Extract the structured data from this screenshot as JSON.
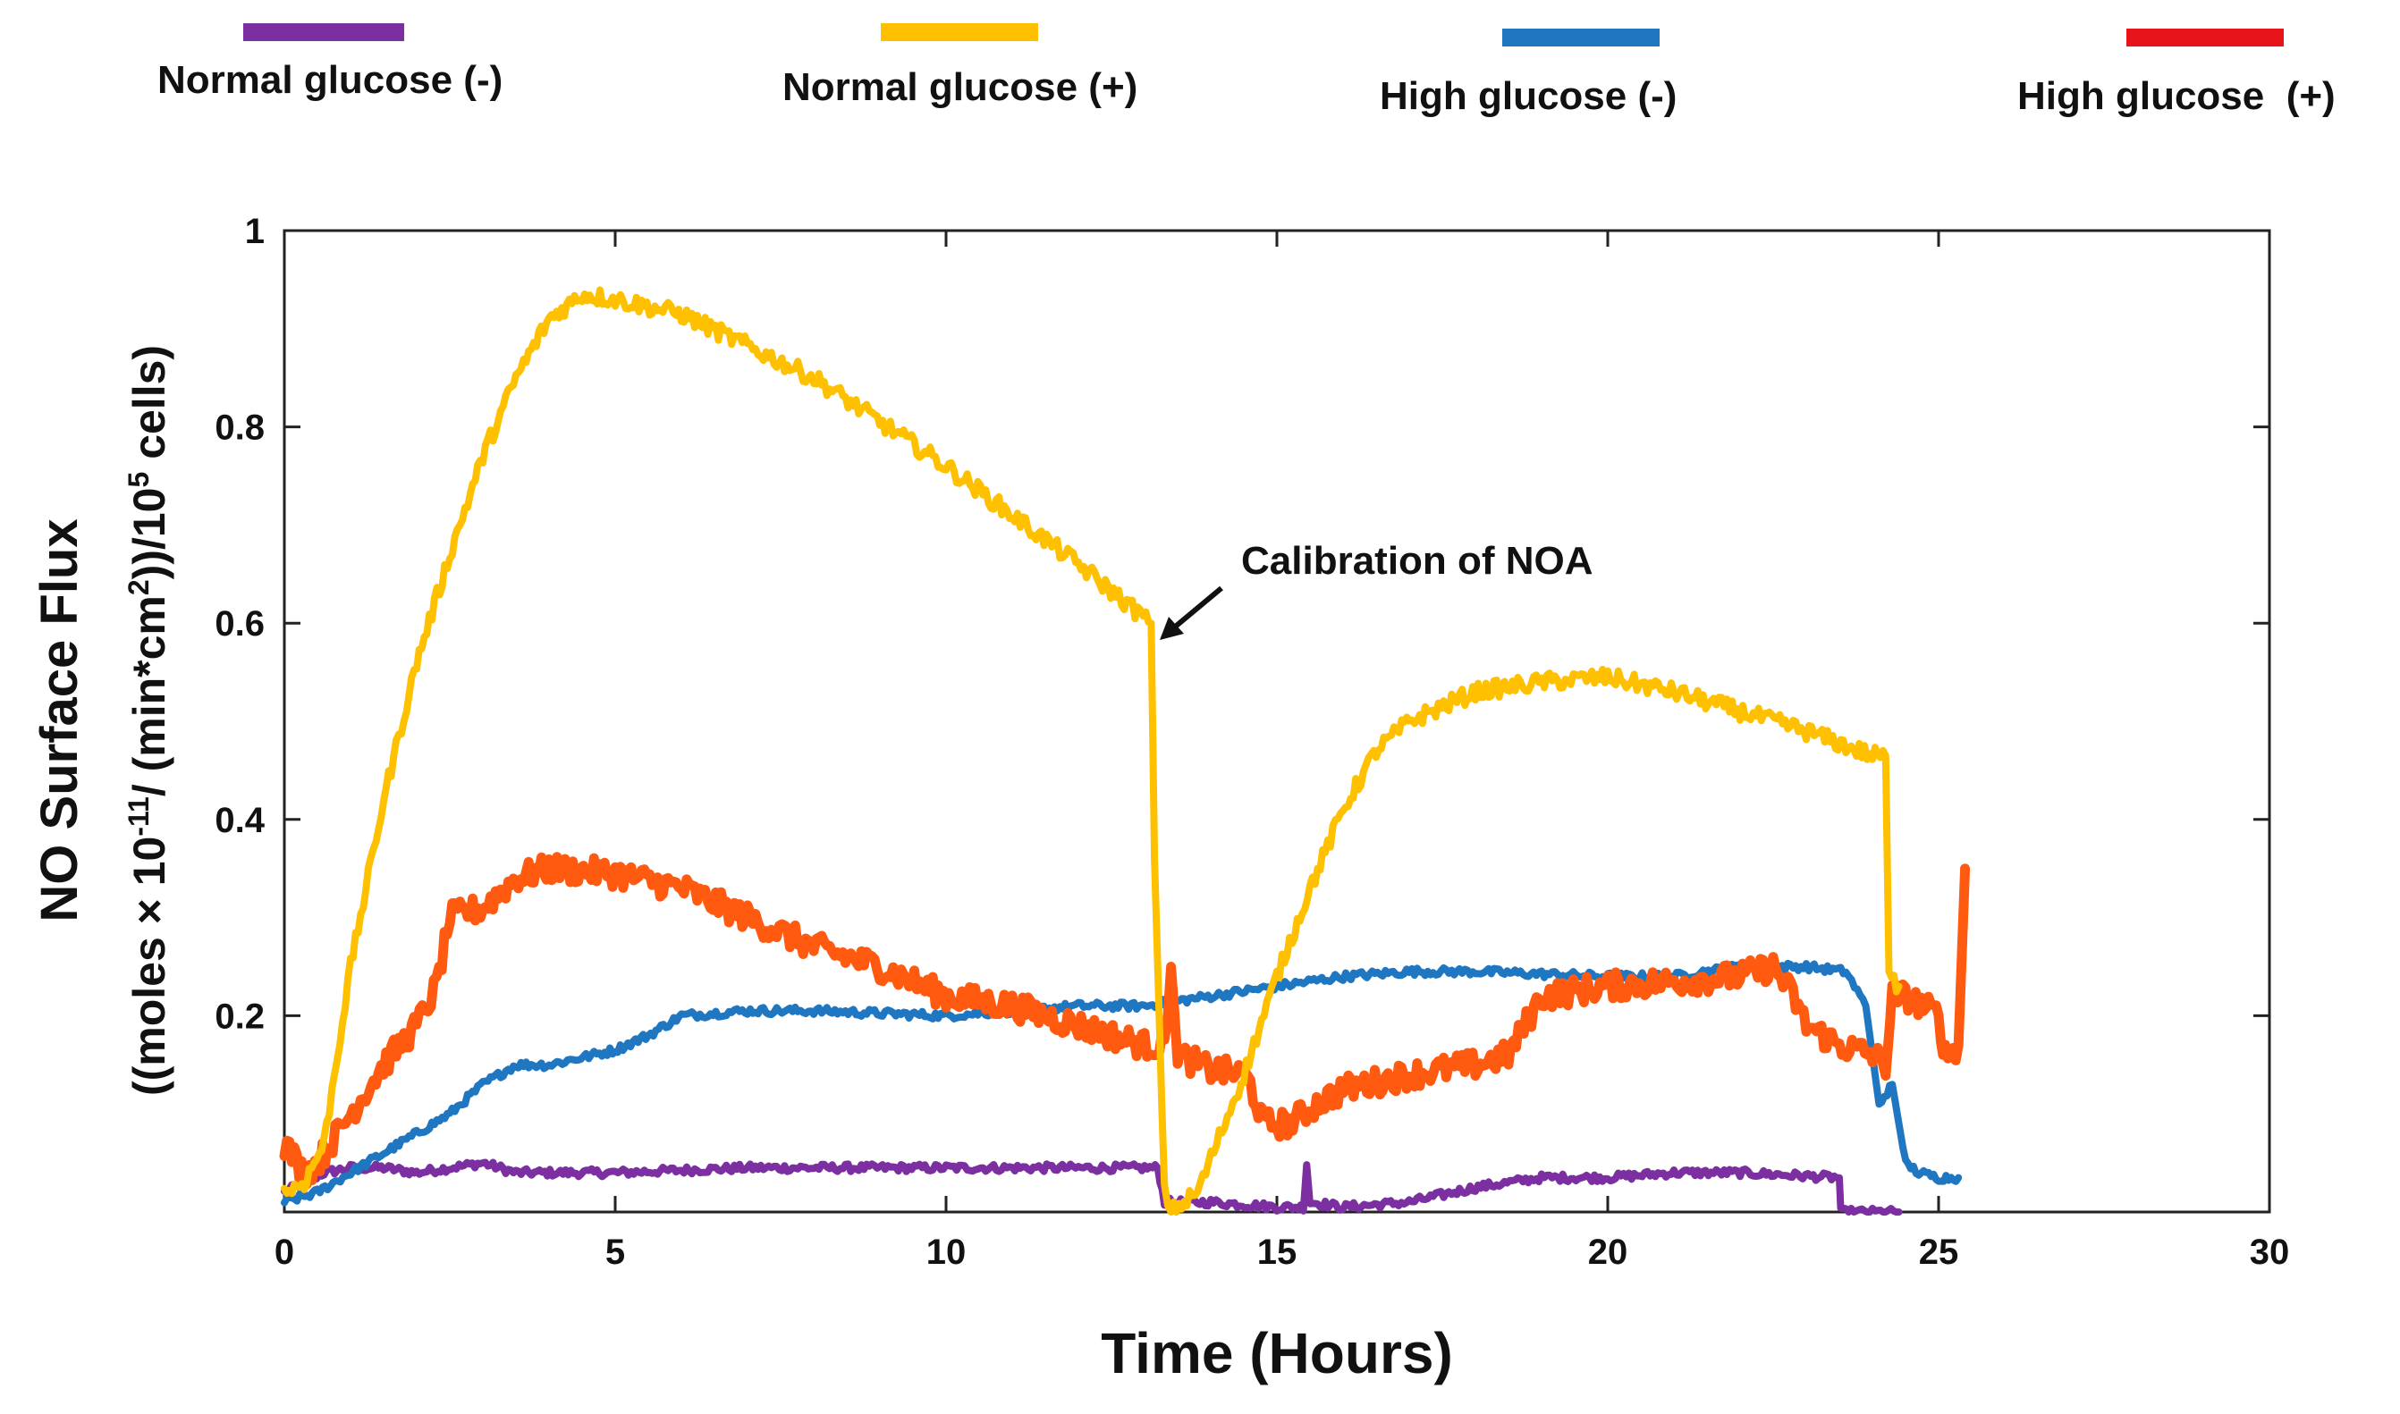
{
  "chart_data": {
    "type": "line",
    "title": "",
    "xlabel": "Time (Hours)",
    "ylabel_line1": "NO Surface Flux",
    "ylabel_line2": {
      "p1": "((moles × 10",
      "sup1": "-11",
      "p2": "/ (min*cm",
      "sup2": "2",
      "p3": "))/10",
      "sup3": "5",
      "p4": " cells)"
    },
    "xlim": [
      0,
      30
    ],
    "ylim": [
      0,
      1
    ],
    "xticks": [
      0,
      5,
      10,
      15,
      20,
      25,
      30
    ],
    "yticks": [
      0.2,
      0.4,
      0.6,
      0.8,
      1
    ],
    "ytick_labels": [
      "0.2",
      "0.4",
      "0.6",
      "0.8",
      "1"
    ],
    "legend_placement": "top",
    "annotation": {
      "text": "Calibration of NOA",
      "x": 13.2,
      "y": 0.6
    },
    "series": [
      {
        "name": "Normal glucose (-)",
        "color": "#7B2FA0",
        "noise": 0.004,
        "points": [
          [
            0,
            0.02
          ],
          [
            0.3,
            0.03
          ],
          [
            0.6,
            0.04
          ],
          [
            1,
            0.045
          ],
          [
            1.5,
            0.045
          ],
          [
            2,
            0.04
          ],
          [
            3,
            0.05
          ],
          [
            3.5,
            0.04
          ],
          [
            5,
            0.04
          ],
          [
            7,
            0.045
          ],
          [
            10,
            0.045
          ],
          [
            12,
            0.045
          ],
          [
            13.2,
            0.045
          ],
          [
            13.3,
            0.01
          ],
          [
            14,
            0.01
          ],
          [
            15,
            0.005
          ],
          [
            15.4,
            0.005
          ],
          [
            15.45,
            0.05
          ],
          [
            15.5,
            0.01
          ],
          [
            16,
            0.005
          ],
          [
            17,
            0.01
          ],
          [
            18,
            0.025
          ],
          [
            19,
            0.035
          ],
          [
            20,
            0.035
          ],
          [
            21,
            0.04
          ],
          [
            22,
            0.04
          ],
          [
            23.5,
            0.035
          ],
          [
            23.52,
            0.0
          ],
          [
            24.4,
            0.0
          ]
        ]
      },
      {
        "name": "Normal glucose (+)",
        "color": "#FFC000",
        "noise": 0.009,
        "points": [
          [
            0,
            0.02
          ],
          [
            0.3,
            0.03
          ],
          [
            0.6,
            0.07
          ],
          [
            1,
            0.25
          ],
          [
            1.5,
            0.42
          ],
          [
            2,
            0.56
          ],
          [
            2.5,
            0.67
          ],
          [
            3,
            0.77
          ],
          [
            3.5,
            0.85
          ],
          [
            4,
            0.91
          ],
          [
            4.5,
            0.935
          ],
          [
            5,
            0.93
          ],
          [
            6,
            0.915
          ],
          [
            8,
            0.85
          ],
          [
            10,
            0.76
          ],
          [
            12,
            0.66
          ],
          [
            13.1,
            0.6
          ],
          [
            13.15,
            0.36
          ],
          [
            13.3,
            0.02
          ],
          [
            13.4,
            0.0
          ],
          [
            13.8,
            0.02
          ],
          [
            14.5,
            0.14
          ],
          [
            15,
            0.24
          ],
          [
            15.5,
            0.33
          ],
          [
            16,
            0.41
          ],
          [
            16.5,
            0.47
          ],
          [
            17,
            0.5
          ],
          [
            18,
            0.53
          ],
          [
            19,
            0.54
          ],
          [
            20,
            0.545
          ],
          [
            21,
            0.53
          ],
          [
            22,
            0.51
          ],
          [
            23,
            0.49
          ],
          [
            24,
            0.465
          ],
          [
            24.2,
            0.465
          ],
          [
            24.25,
            0.24
          ],
          [
            24.4,
            0.23
          ]
        ]
      },
      {
        "name": "High glucose (-)",
        "color": "#1F77C2",
        "noise": 0.004,
        "points": [
          [
            0,
            0.01
          ],
          [
            0.5,
            0.02
          ],
          [
            1,
            0.04
          ],
          [
            1.5,
            0.06
          ],
          [
            2,
            0.08
          ],
          [
            2.5,
            0.1
          ],
          [
            3,
            0.13
          ],
          [
            3.5,
            0.15
          ],
          [
            4,
            0.15
          ],
          [
            5,
            0.165
          ],
          [
            5.5,
            0.18
          ],
          [
            6,
            0.2
          ],
          [
            7,
            0.205
          ],
          [
            8,
            0.205
          ],
          [
            10,
            0.2
          ],
          [
            12,
            0.21
          ],
          [
            13,
            0.21
          ],
          [
            14,
            0.22
          ],
          [
            15,
            0.23
          ],
          [
            16,
            0.24
          ],
          [
            17,
            0.245
          ],
          [
            18,
            0.245
          ],
          [
            20,
            0.24
          ],
          [
            21,
            0.24
          ],
          [
            22,
            0.25
          ],
          [
            23,
            0.25
          ],
          [
            23.6,
            0.245
          ],
          [
            23.9,
            0.21
          ],
          [
            24.1,
            0.11
          ],
          [
            24.3,
            0.13
          ],
          [
            24.5,
            0.05
          ],
          [
            24.7,
            0.04
          ],
          [
            25,
            0.035
          ],
          [
            25.3,
            0.035
          ]
        ]
      },
      {
        "name": "High glucose  (+)",
        "color": "#FF5A10",
        "noise": 0.014,
        "points": [
          [
            0,
            0.07
          ],
          [
            0.3,
            0.04
          ],
          [
            0.5,
            0.05
          ],
          [
            1,
            0.1
          ],
          [
            1.5,
            0.15
          ],
          [
            2,
            0.19
          ],
          [
            2.3,
            0.23
          ],
          [
            2.5,
            0.3
          ],
          [
            3,
            0.31
          ],
          [
            3.5,
            0.34
          ],
          [
            4,
            0.35
          ],
          [
            5,
            0.345
          ],
          [
            6,
            0.33
          ],
          [
            7,
            0.3
          ],
          [
            8,
            0.27
          ],
          [
            9,
            0.25
          ],
          [
            10,
            0.22
          ],
          [
            11,
            0.21
          ],
          [
            12,
            0.19
          ],
          [
            13,
            0.17
          ],
          [
            13.3,
            0.17
          ],
          [
            13.4,
            0.25
          ],
          [
            13.5,
            0.16
          ],
          [
            14,
            0.145
          ],
          [
            14.5,
            0.14
          ],
          [
            14.6,
            0.13
          ],
          [
            14.8,
            0.09
          ],
          [
            15.2,
            0.09
          ],
          [
            15.6,
            0.11
          ],
          [
            16,
            0.125
          ],
          [
            17,
            0.14
          ],
          [
            18,
            0.15
          ],
          [
            18.5,
            0.16
          ],
          [
            19,
            0.22
          ],
          [
            20,
            0.23
          ],
          [
            21,
            0.235
          ],
          [
            22,
            0.24
          ],
          [
            22.5,
            0.25
          ],
          [
            22.8,
            0.22
          ],
          [
            23,
            0.19
          ],
          [
            23.5,
            0.17
          ],
          [
            24,
            0.16
          ],
          [
            24.2,
            0.15
          ],
          [
            24.3,
            0.22
          ],
          [
            24.5,
            0.22
          ],
          [
            25,
            0.2
          ],
          [
            25.1,
            0.16
          ],
          [
            25.3,
            0.17
          ],
          [
            25.4,
            0.35
          ]
        ]
      }
    ]
  }
}
